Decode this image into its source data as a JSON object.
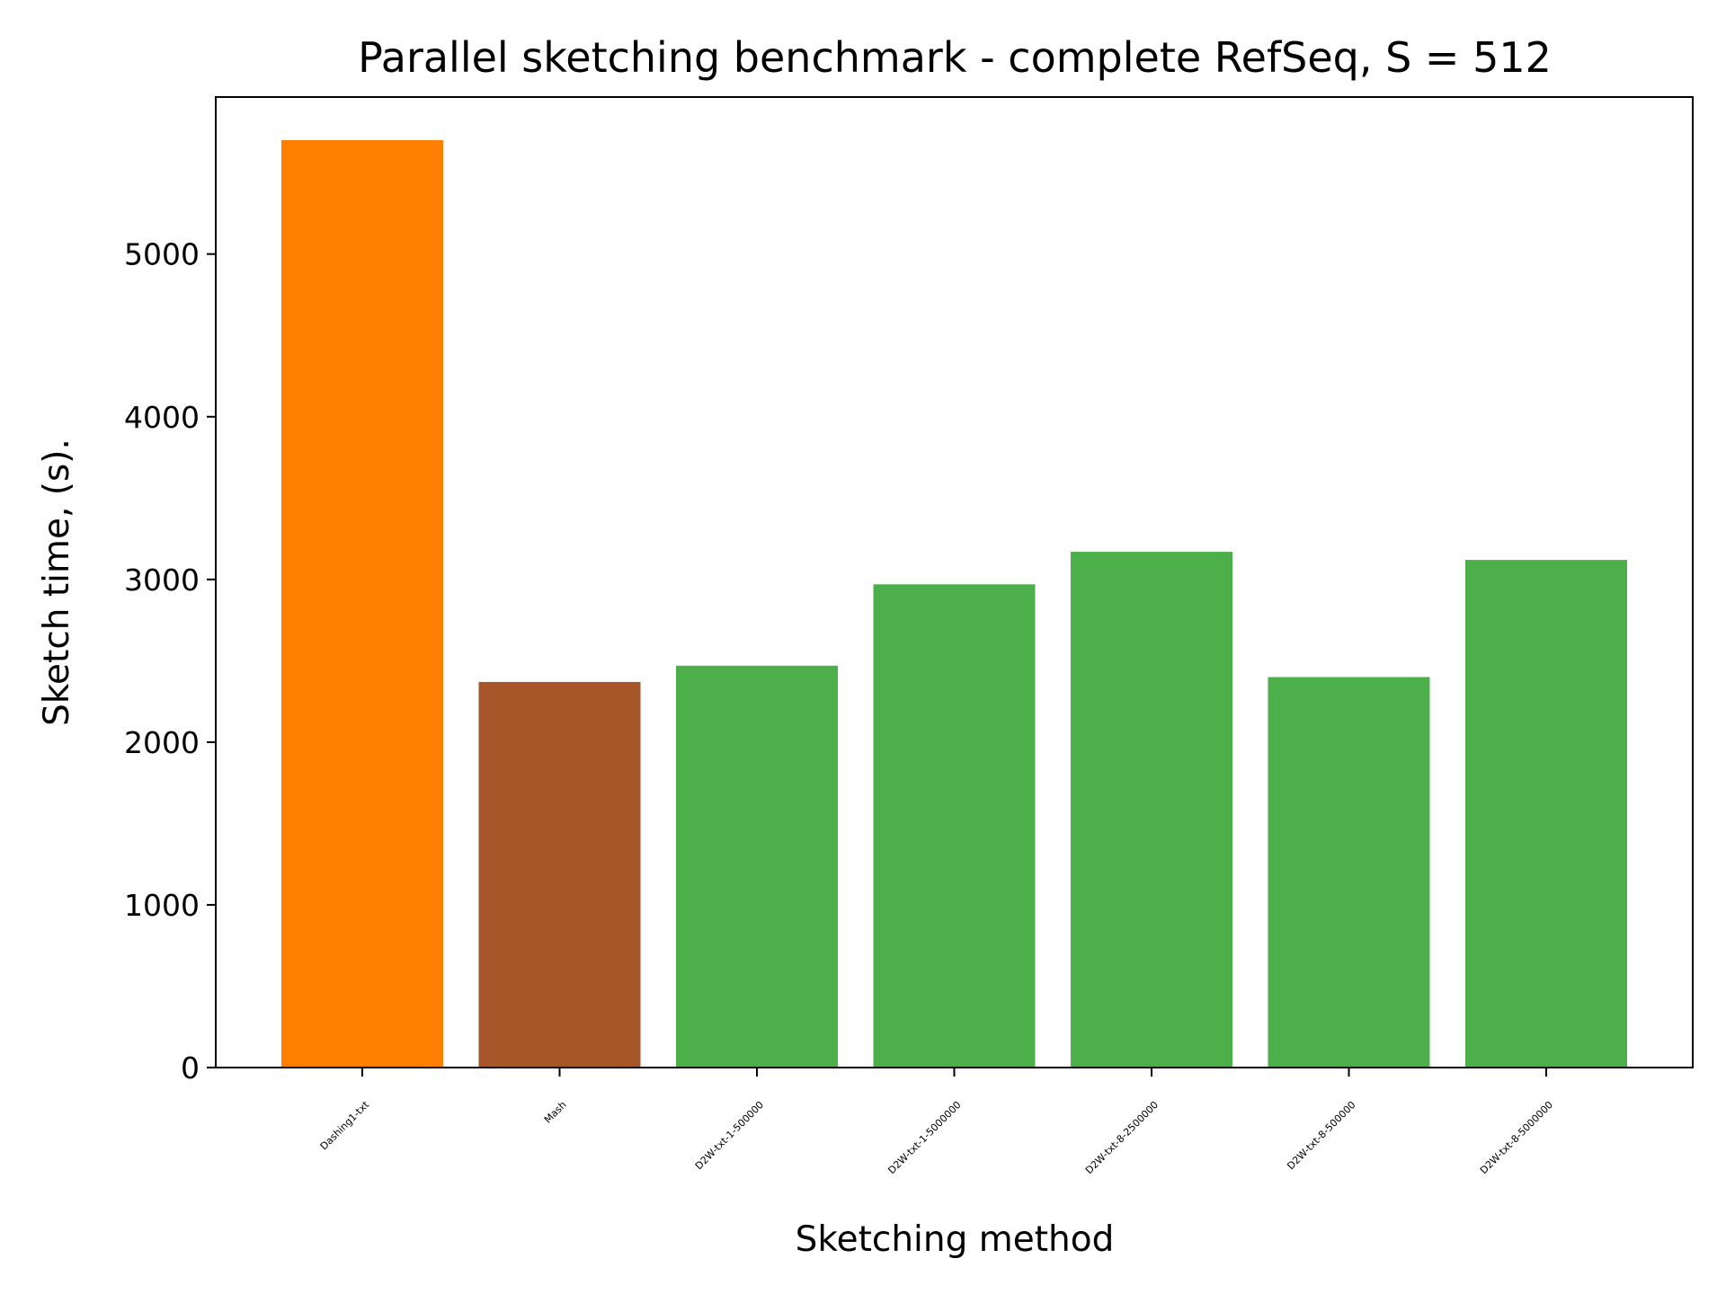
{
  "chart_data": {
    "type": "bar",
    "title": "Parallel sketching benchmark - complete RefSeq, S = 512",
    "xlabel": "Sketching method",
    "ylabel": "Sketch time, (s).",
    "categories": [
      "Dashing1-txt",
      "Mash",
      "D2W-txt-1-500000",
      "D2W-txt-1-5000000",
      "D2W-txt-8-2500000",
      "D2W-txt-8-500000",
      "D2W-txt-8-5000000"
    ],
    "values": [
      5700,
      2370,
      2470,
      2970,
      3170,
      2400,
      3120
    ],
    "colors": [
      "#ff7f00",
      "#a65628",
      "#4daf4a",
      "#4daf4a",
      "#4daf4a",
      "#4daf4a",
      "#4daf4a"
    ],
    "ylim": [
      0,
      5965
    ],
    "yticks": [
      0,
      1000,
      2000,
      3000,
      4000,
      5000
    ],
    "grid": false,
    "legend": "none"
  }
}
